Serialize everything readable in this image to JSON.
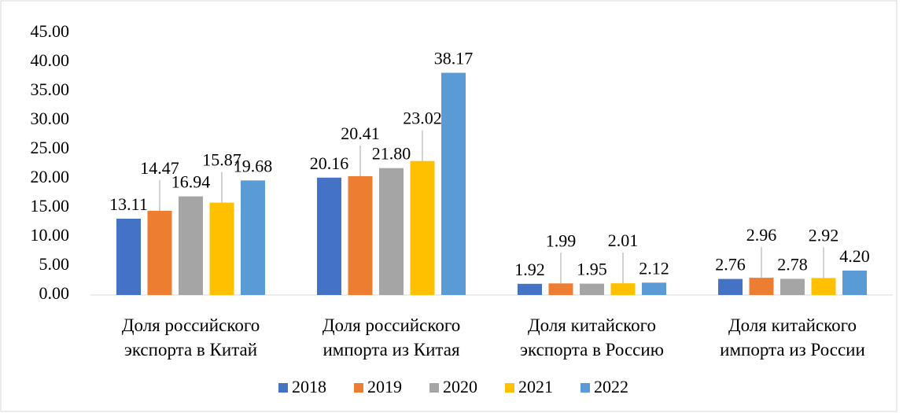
{
  "chart_data": {
    "type": "bar",
    "categories": [
      "Доля российского экспорта в Китай",
      "Доля российского импорта из Китая",
      "Доля китайского экспорта в Россию",
      "Доля китайского импорта из России"
    ],
    "series": [
      {
        "name": "2018",
        "color": "#4472c4",
        "values": [
          13.11,
          20.16,
          1.92,
          2.76
        ],
        "value_labels": [
          "13.11",
          "20.16",
          "1.92",
          "2.76"
        ]
      },
      {
        "name": "2019",
        "color": "#ed7d31",
        "values": [
          14.47,
          20.41,
          1.99,
          2.96
        ],
        "value_labels": [
          "14.47",
          "20.41",
          "1.99",
          "2.96"
        ]
      },
      {
        "name": "2020",
        "color": "#a5a5a5",
        "values": [
          16.94,
          21.8,
          1.95,
          2.78
        ],
        "value_labels": [
          "16.94",
          "21.80",
          "1.95",
          "2.78"
        ]
      },
      {
        "name": "2021",
        "color": "#ffc000",
        "values": [
          15.87,
          23.02,
          2.01,
          2.92
        ],
        "value_labels": [
          "15.87",
          "23.02",
          "2.01",
          "2.92"
        ]
      },
      {
        "name": "2022",
        "color": "#5b9bd5",
        "values": [
          19.68,
          38.17,
          2.12,
          4.2
        ],
        "value_labels": [
          "19.68",
          "38.17",
          "2.12",
          "4.20"
        ]
      }
    ],
    "ylim": [
      0,
      45
    ],
    "yticks": [
      {
        "value": 0,
        "label": "0.00"
      },
      {
        "value": 5,
        "label": "5.00"
      },
      {
        "value": 10,
        "label": "10.00"
      },
      {
        "value": 15,
        "label": "15.00"
      },
      {
        "value": 20,
        "label": "20.00"
      },
      {
        "value": 25,
        "label": "25.00"
      },
      {
        "value": 30,
        "label": "30.00"
      },
      {
        "value": 35,
        "label": "35.00"
      },
      {
        "value": 40,
        "label": "40.00"
      },
      {
        "value": 45,
        "label": "45.00"
      }
    ],
    "legend": "bottom"
  }
}
